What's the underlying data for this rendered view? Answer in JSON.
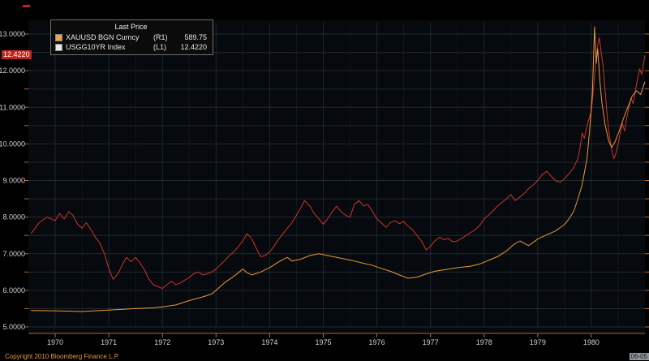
{
  "colors": {
    "background": "#000000",
    "grid": "#1f2a30",
    "plot_bg": "#06090d",
    "axis_orange": "#c2641e",
    "tick_label": "#ced3d8",
    "badge_bg": "#c0251c",
    "copyright_orange": "#e39b3b"
  },
  "legend": {
    "title": "Last Price",
    "series": [
      {
        "label": "XAUUSD BGN Curncy",
        "axis": "(R1)",
        "value": "589.75",
        "swatch": "#f0a43c"
      },
      {
        "label": "USGG10YR Index",
        "axis": "(L1)",
        "value": "12.4220",
        "swatch": "#e8e8e8"
      }
    ]
  },
  "badge": {
    "value": "12.4220"
  },
  "footer": {
    "copyright": "Copyright 2010 Bloomberg Finance L.P.",
    "timestamp": "06-05"
  },
  "chart_data": {
    "type": "line",
    "title": "Last Price",
    "xlim": [
      1969.5,
      1981.0
    ],
    "ylim": [
      5,
      13
    ],
    "x_ticks": [
      1970,
      1971,
      1972,
      1973,
      1974,
      1975,
      1976,
      1977,
      1978,
      1979,
      1980
    ],
    "y_label_step": 1,
    "y_grid_step": 0.5,
    "y_label_decimals": 4,
    "legend_position": "top-left",
    "grid": true,
    "note": "XAUUSD is plotted on right axis (R1) whose labels are cut off at the image edge; its point values below are expressed on the visible left-axis scale. USGG10YR last price 12.4220 is flagged on the left axis.",
    "series": [
      {
        "name": "USGG10YR Index",
        "axis": "L1",
        "color": "#d0342c",
        "last": 12.422,
        "points": [
          [
            1969.55,
            7.55
          ],
          [
            1969.7,
            7.85
          ],
          [
            1969.85,
            8.0
          ],
          [
            1970.0,
            7.9
          ],
          [
            1970.08,
            8.1
          ],
          [
            1970.17,
            7.95
          ],
          [
            1970.25,
            8.15
          ],
          [
            1970.33,
            8.05
          ],
          [
            1970.42,
            7.8
          ],
          [
            1970.5,
            7.7
          ],
          [
            1970.58,
            7.85
          ],
          [
            1970.67,
            7.65
          ],
          [
            1970.75,
            7.45
          ],
          [
            1970.83,
            7.3
          ],
          [
            1970.92,
            7.0
          ],
          [
            1971.0,
            6.6
          ],
          [
            1971.08,
            6.3
          ],
          [
            1971.17,
            6.45
          ],
          [
            1971.25,
            6.7
          ],
          [
            1971.33,
            6.9
          ],
          [
            1971.42,
            6.78
          ],
          [
            1971.5,
            6.9
          ],
          [
            1971.58,
            6.75
          ],
          [
            1971.67,
            6.55
          ],
          [
            1971.75,
            6.3
          ],
          [
            1971.83,
            6.15
          ],
          [
            1971.92,
            6.1
          ],
          [
            1972.0,
            6.05
          ],
          [
            1972.08,
            6.15
          ],
          [
            1972.17,
            6.25
          ],
          [
            1972.25,
            6.15
          ],
          [
            1972.33,
            6.2
          ],
          [
            1972.42,
            6.28
          ],
          [
            1972.5,
            6.35
          ],
          [
            1972.58,
            6.45
          ],
          [
            1972.67,
            6.5
          ],
          [
            1972.75,
            6.42
          ],
          [
            1972.83,
            6.45
          ],
          [
            1972.92,
            6.5
          ],
          [
            1973.0,
            6.58
          ],
          [
            1973.08,
            6.7
          ],
          [
            1973.17,
            6.82
          ],
          [
            1973.25,
            6.95
          ],
          [
            1973.33,
            7.05
          ],
          [
            1973.42,
            7.2
          ],
          [
            1973.5,
            7.35
          ],
          [
            1973.58,
            7.55
          ],
          [
            1973.67,
            7.4
          ],
          [
            1973.75,
            7.15
          ],
          [
            1973.83,
            6.92
          ],
          [
            1973.92,
            6.95
          ],
          [
            1974.0,
            7.05
          ],
          [
            1974.08,
            7.2
          ],
          [
            1974.17,
            7.4
          ],
          [
            1974.25,
            7.55
          ],
          [
            1974.33,
            7.7
          ],
          [
            1974.42,
            7.85
          ],
          [
            1974.5,
            8.05
          ],
          [
            1974.58,
            8.25
          ],
          [
            1974.65,
            8.45
          ],
          [
            1974.75,
            8.3
          ],
          [
            1974.83,
            8.1
          ],
          [
            1974.92,
            7.95
          ],
          [
            1975.0,
            7.8
          ],
          [
            1975.08,
            7.95
          ],
          [
            1975.17,
            8.15
          ],
          [
            1975.25,
            8.3
          ],
          [
            1975.33,
            8.15
          ],
          [
            1975.42,
            8.05
          ],
          [
            1975.5,
            8.0
          ],
          [
            1975.58,
            8.35
          ],
          [
            1975.67,
            8.45
          ],
          [
            1975.75,
            8.3
          ],
          [
            1975.83,
            8.35
          ],
          [
            1975.92,
            8.15
          ],
          [
            1976.0,
            7.95
          ],
          [
            1976.08,
            7.85
          ],
          [
            1976.17,
            7.72
          ],
          [
            1976.25,
            7.85
          ],
          [
            1976.33,
            7.9
          ],
          [
            1976.42,
            7.82
          ],
          [
            1976.5,
            7.88
          ],
          [
            1976.58,
            7.75
          ],
          [
            1976.67,
            7.65
          ],
          [
            1976.75,
            7.5
          ],
          [
            1976.83,
            7.35
          ],
          [
            1976.92,
            7.1
          ],
          [
            1977.0,
            7.2
          ],
          [
            1977.08,
            7.35
          ],
          [
            1977.17,
            7.45
          ],
          [
            1977.25,
            7.38
          ],
          [
            1977.33,
            7.42
          ],
          [
            1977.42,
            7.32
          ],
          [
            1977.5,
            7.35
          ],
          [
            1977.58,
            7.42
          ],
          [
            1977.67,
            7.5
          ],
          [
            1977.75,
            7.58
          ],
          [
            1977.83,
            7.65
          ],
          [
            1977.92,
            7.78
          ],
          [
            1978.0,
            7.95
          ],
          [
            1978.08,
            8.05
          ],
          [
            1978.17,
            8.18
          ],
          [
            1978.25,
            8.3
          ],
          [
            1978.33,
            8.4
          ],
          [
            1978.42,
            8.5
          ],
          [
            1978.5,
            8.62
          ],
          [
            1978.58,
            8.45
          ],
          [
            1978.67,
            8.55
          ],
          [
            1978.75,
            8.65
          ],
          [
            1978.83,
            8.78
          ],
          [
            1978.92,
            8.88
          ],
          [
            1979.0,
            9.0
          ],
          [
            1979.08,
            9.15
          ],
          [
            1979.17,
            9.25
          ],
          [
            1979.25,
            9.12
          ],
          [
            1979.33,
            9.0
          ],
          [
            1979.42,
            8.95
          ],
          [
            1979.5,
            9.05
          ],
          [
            1979.58,
            9.18
          ],
          [
            1979.67,
            9.35
          ],
          [
            1979.75,
            9.6
          ],
          [
            1979.79,
            9.9
          ],
          [
            1979.83,
            10.3
          ],
          [
            1979.87,
            10.15
          ],
          [
            1979.92,
            10.5
          ],
          [
            1979.96,
            10.7
          ],
          [
            1980.0,
            10.9
          ],
          [
            1980.04,
            11.5
          ],
          [
            1980.08,
            12.2
          ],
          [
            1980.12,
            12.7
          ],
          [
            1980.15,
            12.9
          ],
          [
            1980.18,
            12.55
          ],
          [
            1980.22,
            12.1
          ],
          [
            1980.26,
            11.4
          ],
          [
            1980.3,
            10.7
          ],
          [
            1980.34,
            10.2
          ],
          [
            1980.38,
            9.85
          ],
          [
            1980.42,
            9.6
          ],
          [
            1980.46,
            9.75
          ],
          [
            1980.5,
            10.0
          ],
          [
            1980.54,
            10.3
          ],
          [
            1980.58,
            10.55
          ],
          [
            1980.62,
            10.35
          ],
          [
            1980.66,
            10.7
          ],
          [
            1980.7,
            11.0
          ],
          [
            1980.74,
            11.25
          ],
          [
            1980.78,
            11.1
          ],
          [
            1980.82,
            11.45
          ],
          [
            1980.86,
            11.75
          ],
          [
            1980.9,
            12.05
          ],
          [
            1980.94,
            11.9
          ],
          [
            1981.0,
            12.42
          ]
        ]
      },
      {
        "name": "XAUUSD BGN Curncy",
        "axis": "R1",
        "color": "#e89a38",
        "last": 589.75,
        "points": [
          [
            1969.55,
            5.45
          ],
          [
            1970.0,
            5.44
          ],
          [
            1970.5,
            5.42
          ],
          [
            1971.0,
            5.46
          ],
          [
            1971.5,
            5.5
          ],
          [
            1971.83,
            5.52
          ],
          [
            1972.0,
            5.55
          ],
          [
            1972.25,
            5.6
          ],
          [
            1972.5,
            5.72
          ],
          [
            1972.75,
            5.82
          ],
          [
            1972.92,
            5.9
          ],
          [
            1973.0,
            6.0
          ],
          [
            1973.17,
            6.22
          ],
          [
            1973.33,
            6.38
          ],
          [
            1973.5,
            6.58
          ],
          [
            1973.58,
            6.48
          ],
          [
            1973.67,
            6.42
          ],
          [
            1973.83,
            6.5
          ],
          [
            1974.0,
            6.62
          ],
          [
            1974.17,
            6.78
          ],
          [
            1974.33,
            6.9
          ],
          [
            1974.42,
            6.8
          ],
          [
            1974.58,
            6.85
          ],
          [
            1974.75,
            6.95
          ],
          [
            1974.92,
            7.0
          ],
          [
            1975.08,
            6.95
          ],
          [
            1975.25,
            6.9
          ],
          [
            1975.42,
            6.85
          ],
          [
            1975.58,
            6.8
          ],
          [
            1975.75,
            6.74
          ],
          [
            1975.92,
            6.68
          ],
          [
            1976.08,
            6.6
          ],
          [
            1976.25,
            6.52
          ],
          [
            1976.42,
            6.42
          ],
          [
            1976.58,
            6.33
          ],
          [
            1976.75,
            6.36
          ],
          [
            1976.92,
            6.45
          ],
          [
            1977.08,
            6.52
          ],
          [
            1977.25,
            6.56
          ],
          [
            1977.42,
            6.6
          ],
          [
            1977.58,
            6.63
          ],
          [
            1977.75,
            6.66
          ],
          [
            1977.92,
            6.72
          ],
          [
            1978.08,
            6.82
          ],
          [
            1978.25,
            6.92
          ],
          [
            1978.42,
            7.08
          ],
          [
            1978.55,
            7.25
          ],
          [
            1978.67,
            7.35
          ],
          [
            1978.83,
            7.22
          ],
          [
            1979.0,
            7.4
          ],
          [
            1979.17,
            7.52
          ],
          [
            1979.33,
            7.62
          ],
          [
            1979.5,
            7.8
          ],
          [
            1979.58,
            7.95
          ],
          [
            1979.67,
            8.15
          ],
          [
            1979.75,
            8.5
          ],
          [
            1979.83,
            8.9
          ],
          [
            1979.92,
            9.6
          ],
          [
            1979.97,
            10.4
          ],
          [
            1980.02,
            11.4
          ],
          [
            1980.06,
            13.2
          ],
          [
            1980.09,
            12.2
          ],
          [
            1980.12,
            12.6
          ],
          [
            1980.16,
            11.7
          ],
          [
            1980.2,
            11.1
          ],
          [
            1980.26,
            10.5
          ],
          [
            1980.32,
            10.1
          ],
          [
            1980.38,
            9.9
          ],
          [
            1980.44,
            10.05
          ],
          [
            1980.52,
            10.35
          ],
          [
            1980.6,
            10.7
          ],
          [
            1980.68,
            11.0
          ],
          [
            1980.76,
            11.3
          ],
          [
            1980.84,
            11.45
          ],
          [
            1980.92,
            11.35
          ],
          [
            1981.0,
            11.7
          ]
        ]
      }
    ]
  }
}
